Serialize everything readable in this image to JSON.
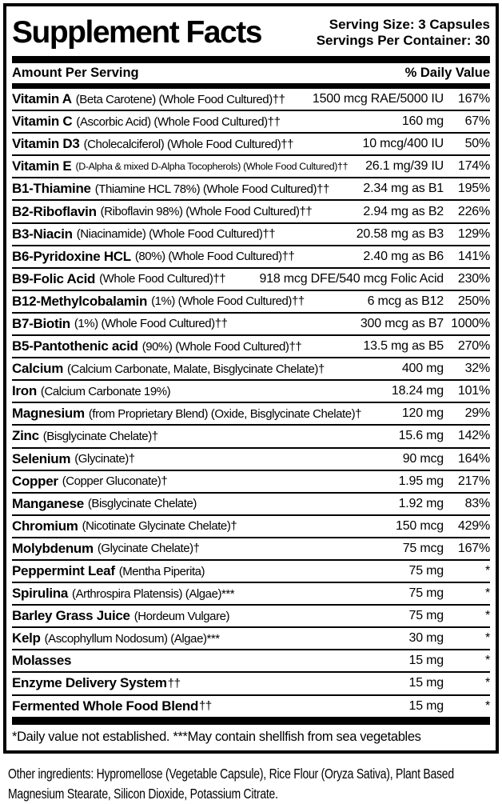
{
  "header": {
    "title": "Supplement Facts",
    "serving_size": "Serving Size: 3 Capsules",
    "servings_per_container": "Servings Per Container: 30"
  },
  "columns": {
    "amount_header": "Amount Per Serving",
    "dv_header": "% Daily Value"
  },
  "rows": [
    {
      "name": "Vitamin A",
      "desc": "(Beta Carotene) (Whole Food Cultured)††",
      "amount": "1500 mcg RAE/5000 IU",
      "dv": "167%"
    },
    {
      "name": "Vitamin C",
      "desc": "(Ascorbic Acid) (Whole Food Cultured)††",
      "amount": "160 mg",
      "dv": "67%"
    },
    {
      "name": "Vitamin D3",
      "desc": "(Cholecalciferol) (Whole Food Cultured)††",
      "amount": "10 mcg/400 IU",
      "dv": "50%"
    },
    {
      "name": "Vitamin E",
      "desc": "(D-Alpha & mixed D-Alpha Tocopherols) (Whole Food Cultured)††",
      "amount": "26.1 mg/39 IU",
      "dv": "174%",
      "compact": true
    },
    {
      "name": "B1-Thiamine",
      "desc": "(Thiamine HCL 78%) (Whole Food Cultured)††",
      "amount": "2.34 mg as B1",
      "dv": "195%"
    },
    {
      "name": "B2-Riboflavin",
      "desc": "(Riboflavin 98%) (Whole Food Cultured)††",
      "amount": "2.94 mg as B2",
      "dv": "226%"
    },
    {
      "name": "B3-Niacin",
      "desc": "(Niacinamide) (Whole Food Cultured)††",
      "amount": "20.58 mg as B3",
      "dv": "129%"
    },
    {
      "name": "B6-Pyridoxine HCL",
      "desc": "(80%) (Whole Food Cultured)††",
      "amount": "2.40 mg as B6",
      "dv": "141%"
    },
    {
      "name": "B9-Folic Acid",
      "desc": "(Whole Food Cultured)††",
      "amount": "918 mcg DFE/540 mcg Folic Acid",
      "dv": "230%"
    },
    {
      "name": "B12-Methylcobalamin",
      "desc": "(1%) (Whole Food Cultured)††",
      "amount": "6 mcg as B12",
      "dv": "250%"
    },
    {
      "name": "B7-Biotin",
      "desc": "(1%) (Whole Food Cultured)††",
      "amount": "300 mcg as B7",
      "dv": "1000%"
    },
    {
      "name": "B5-Pantothenic acid",
      "desc": "(90%) (Whole Food Cultured)††",
      "amount": "13.5 mg as B5",
      "dv": "270%"
    },
    {
      "name": "Calcium",
      "desc": "(Calcium Carbonate, Malate, Bisglycinate Chelate)†",
      "amount": "400 mg",
      "dv": "32%"
    },
    {
      "name": "Iron",
      "desc": "(Calcium Carbonate 19%)",
      "amount": "18.24 mg",
      "dv": "101%"
    },
    {
      "name": "Magnesium",
      "desc": "(from Proprietary Blend) (Oxide, Bisglycinate Chelate)†",
      "amount": "120 mg",
      "dv": "29%"
    },
    {
      "name": "Zinc",
      "desc": "(Bisglycinate Chelate)†",
      "amount": "15.6 mg",
      "dv": "142%"
    },
    {
      "name": "Selenium",
      "desc": "(Glycinate)†",
      "amount": "90 mcg",
      "dv": "164%"
    },
    {
      "name": "Copper",
      "desc": "(Copper Gluconate)†",
      "amount": "1.95 mg",
      "dv": "217%"
    },
    {
      "name": "Manganese",
      "desc": "(Bisglycinate Chelate)",
      "amount": "1.92 mg",
      "dv": "83%"
    },
    {
      "name": "Chromium",
      "desc": "(Nicotinate Glycinate Chelate)†",
      "amount": "150 mcg",
      "dv": "429%"
    },
    {
      "name": "Molybdenum",
      "desc": "(Glycinate Chelate)†",
      "amount": "75 mcg",
      "dv": "167%"
    },
    {
      "name": "Peppermint Leaf",
      "desc": "(Mentha Piperita)",
      "amount": "75 mg",
      "dv": "*"
    },
    {
      "name": "Spirulina",
      "desc": "(Arthrospira Platensis) (Algae)***",
      "amount": "75 mg",
      "dv": "*"
    },
    {
      "name": "Barley Grass Juice",
      "desc": "(Hordeum Vulgare)",
      "amount": "75 mg",
      "dv": "*"
    },
    {
      "name": "Kelp",
      "desc": "(Ascophyllum Nodosum) (Algae)***",
      "amount": "30 mg",
      "dv": "*"
    },
    {
      "name": "Molasses",
      "desc": "",
      "amount": "15 mg",
      "dv": "*"
    },
    {
      "name": "Enzyme Delivery System",
      "desc": "††",
      "amount": "15 mg",
      "dv": "*"
    },
    {
      "name": "Fermented Whole Food Blend",
      "desc": "††",
      "amount": "15 mg",
      "dv": "*"
    }
  ],
  "footnote": "*Daily value not established. ***May contain shellfish from sea vegetables",
  "other_ingredients": "Other ingredients: Hypromellose (Vegetable Capsule), Rice Flour (Oryza Sativa), Plant Based Magnesium Stearate, Silicon Dioxide, Potassium Citrate.",
  "colors": {
    "text": "#000000",
    "background": "#ffffff",
    "border": "#000000"
  }
}
